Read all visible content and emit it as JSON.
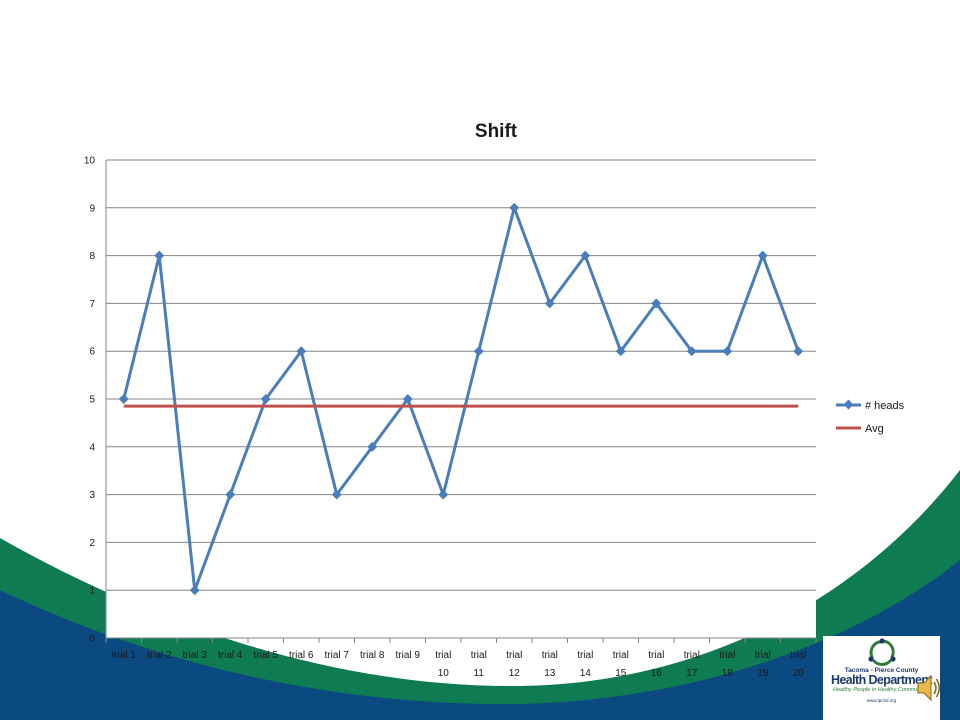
{
  "colors": {
    "heads_line": "#4a7ebb",
    "avg_line": "#c0504d",
    "slide_green": "#0f7b52",
    "slide_navy": "#0b4a80",
    "gridline": "#868686"
  },
  "chart_data": {
    "type": "line",
    "title": "Shift",
    "categories": [
      "trial 1",
      "trial 2",
      "trial 3",
      "trial 4",
      "trial 5",
      "trial 6",
      "trial 7",
      "trial 8",
      "trial 9",
      "trial 10",
      "trial 11",
      "trial 12",
      "trial 13",
      "trial 14",
      "trial 15",
      "trial 16",
      "trial 17",
      "trial 18",
      "trial 19",
      "trial 20"
    ],
    "series": [
      {
        "name": "# heads",
        "marker": "diamond",
        "values": [
          5,
          8,
          1,
          3,
          5,
          6,
          3,
          4,
          5,
          3,
          6,
          9,
          7,
          8,
          6,
          7,
          6,
          6,
          8,
          6
        ]
      },
      {
        "name": "Avg",
        "marker": "none",
        "values": [
          4.85,
          4.85,
          4.85,
          4.85,
          4.85,
          4.85,
          4.85,
          4.85,
          4.85,
          4.85,
          4.85,
          4.85,
          4.85,
          4.85,
          4.85,
          4.85,
          4.85,
          4.85,
          4.85,
          4.85
        ]
      }
    ],
    "xlabel": "",
    "ylabel": "",
    "ylim": [
      0,
      10
    ],
    "yticks": [
      0,
      1,
      2,
      3,
      4,
      5,
      6,
      7,
      8,
      9,
      10
    ],
    "grid": "horizontal",
    "legend": "right"
  },
  "logo": {
    "county": "Tacoma - Pierce County",
    "name": "Health Department",
    "tagline": "Healthy People in Healthy Communities",
    "url": "www.tpchd.org"
  },
  "icons": {
    "logo_mark": "three-figures-ring-icon",
    "audio": "speaker-icon"
  }
}
